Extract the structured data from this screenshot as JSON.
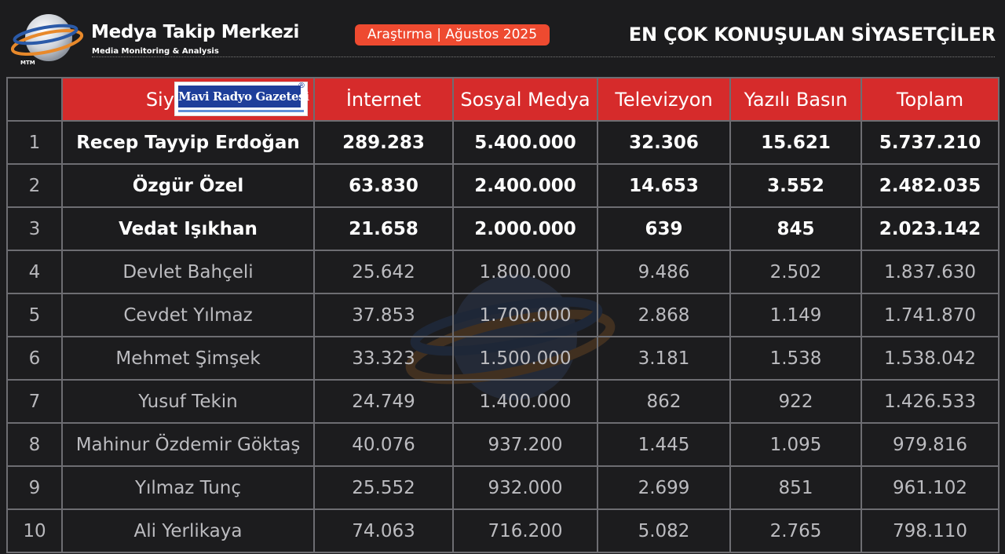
{
  "header": {
    "logo_letters": "MTM",
    "brand_name": "Medya Takip Merkezi",
    "brand_subtitle": "Media Monitoring & Analysis",
    "badge": "Araştırma | Ağustos 2025",
    "title": "EN ÇOK KONUŞULAN SİYASETÇİLER"
  },
  "colors": {
    "background": "#1c1c1e",
    "header_red": "#d62b2b",
    "badge_orange": "#ee4a30",
    "grid_line": "#6d6d72"
  },
  "table": {
    "columns": [
      "",
      "Siyasetçi",
      "İnternet",
      "Sosyal Medya",
      "Televizyon",
      "Yazılı Basın",
      "Toplam"
    ],
    "header_logo": "Mavi Radyo Gazetesi",
    "header_logo_mark": "®",
    "rows": [
      {
        "rank": "1",
        "name": "Recep Tayyip Erdoğan",
        "internet": "289.283",
        "sosyal": "5.400.000",
        "tv": "32.306",
        "basin": "15.621",
        "toplam": "5.737.210"
      },
      {
        "rank": "2",
        "name": "Özgür Özel",
        "internet": "63.830",
        "sosyal": "2.400.000",
        "tv": "14.653",
        "basin": "3.552",
        "toplam": "2.482.035"
      },
      {
        "rank": "3",
        "name": "Vedat Işıkhan",
        "internet": "21.658",
        "sosyal": "2.000.000",
        "tv": "639",
        "basin": "845",
        "toplam": "2.023.142"
      },
      {
        "rank": "4",
        "name": "Devlet Bahçeli",
        "internet": "25.642",
        "sosyal": "1.800.000",
        "tv": "9.486",
        "basin": "2.502",
        "toplam": "1.837.630"
      },
      {
        "rank": "5",
        "name": "Cevdet Yılmaz",
        "internet": "37.853",
        "sosyal": "1.700.000",
        "tv": "2.868",
        "basin": "1.149",
        "toplam": "1.741.870"
      },
      {
        "rank": "6",
        "name": "Mehmet Şimşek",
        "internet": "33.323",
        "sosyal": "1.500.000",
        "tv": "3.181",
        "basin": "1.538",
        "toplam": "1.538.042"
      },
      {
        "rank": "7",
        "name": "Yusuf Tekin",
        "internet": "24.749",
        "sosyal": "1.400.000",
        "tv": "862",
        "basin": "922",
        "toplam": "1.426.533"
      },
      {
        "rank": "8",
        "name": "Mahinur Özdemir Göktaş",
        "internet": "40.076",
        "sosyal": "937.200",
        "tv": "1.445",
        "basin": "1.095",
        "toplam": "979.816"
      },
      {
        "rank": "9",
        "name": "Yılmaz Tunç",
        "internet": "25.552",
        "sosyal": "932.000",
        "tv": "2.699",
        "basin": "851",
        "toplam": "961.102"
      },
      {
        "rank": "10",
        "name": "Ali Yerlikaya",
        "internet": "74.063",
        "sosyal": "716.200",
        "tv": "5.082",
        "basin": "2.765",
        "toplam": "798.110"
      }
    ]
  }
}
